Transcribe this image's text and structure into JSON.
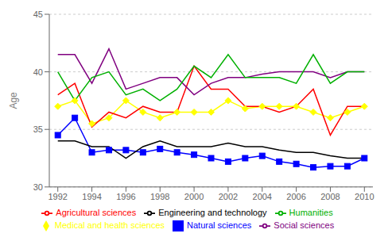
{
  "chart_data": {
    "type": "line",
    "y_label": "Age",
    "x": [
      1992,
      1993,
      1994,
      1995,
      1996,
      1997,
      1998,
      1999,
      2000,
      2001,
      2002,
      2003,
      2004,
      2005,
      2006,
      2007,
      2008,
      2009,
      2010
    ],
    "series": [
      {
        "name": "Natural sciences",
        "color": "#0000ff",
        "marker": "square",
        "values": [
          34.5,
          36.0,
          33.0,
          33.2,
          33.2,
          33.0,
          33.3,
          33.0,
          32.8,
          32.5,
          32.2,
          32.5,
          32.7,
          32.2,
          32.0,
          31.7,
          31.8,
          31.8,
          32.5
        ]
      },
      {
        "name": "Engineering and technology",
        "color": "#000000",
        "marker": "none",
        "values": [
          34.0,
          34.0,
          33.5,
          33.5,
          32.5,
          33.5,
          34.0,
          33.5,
          33.5,
          33.5,
          33.8,
          33.5,
          33.5,
          33.2,
          33.0,
          33.0,
          32.7,
          32.5,
          32.5
        ]
      },
      {
        "name": "Medical and health sciences",
        "color": "#ffff00",
        "marker": "diamond",
        "values": [
          37.0,
          37.5,
          35.5,
          36.0,
          37.5,
          36.5,
          36.0,
          36.5,
          36.5,
          36.5,
          37.5,
          36.8,
          37.0,
          37.0,
          37.0,
          36.5,
          36.0,
          36.5,
          37.0
        ]
      },
      {
        "name": "Agricultural sciences",
        "color": "#ff0000",
        "marker": "none",
        "values": [
          38.0,
          39.0,
          35.2,
          36.5,
          36.0,
          37.0,
          36.5,
          36.5,
          40.5,
          38.5,
          38.5,
          37.0,
          37.0,
          36.5,
          37.0,
          38.5,
          34.5,
          37.0,
          37.0
        ]
      },
      {
        "name": "Social sciences",
        "color": "#800080",
        "marker": "none",
        "values": [
          41.5,
          41.5,
          39.0,
          42.0,
          38.5,
          39.0,
          39.5,
          39.5,
          38.0,
          39.0,
          39.5,
          39.5,
          39.8,
          40.0,
          40.0,
          40.0,
          39.5,
          40.0,
          40.0
        ]
      },
      {
        "name": "Humanities",
        "color": "#00b000",
        "marker": "none",
        "values": [
          40.0,
          37.5,
          39.5,
          40.0,
          38.0,
          38.5,
          37.5,
          38.5,
          40.5,
          39.5,
          41.5,
          39.5,
          39.5,
          39.5,
          39.0,
          41.5,
          39.0,
          40.0,
          40.0
        ]
      }
    ],
    "ylim": [
      30,
      45
    ],
    "yticks": [
      30,
      35,
      40,
      45
    ],
    "xlim": [
      1991.5,
      2010.5
    ],
    "xticks": [
      1992,
      1994,
      1996,
      1998,
      2000,
      2002,
      2004,
      2006,
      2008,
      2010
    ],
    "grid": "y",
    "legend": "bottom"
  }
}
